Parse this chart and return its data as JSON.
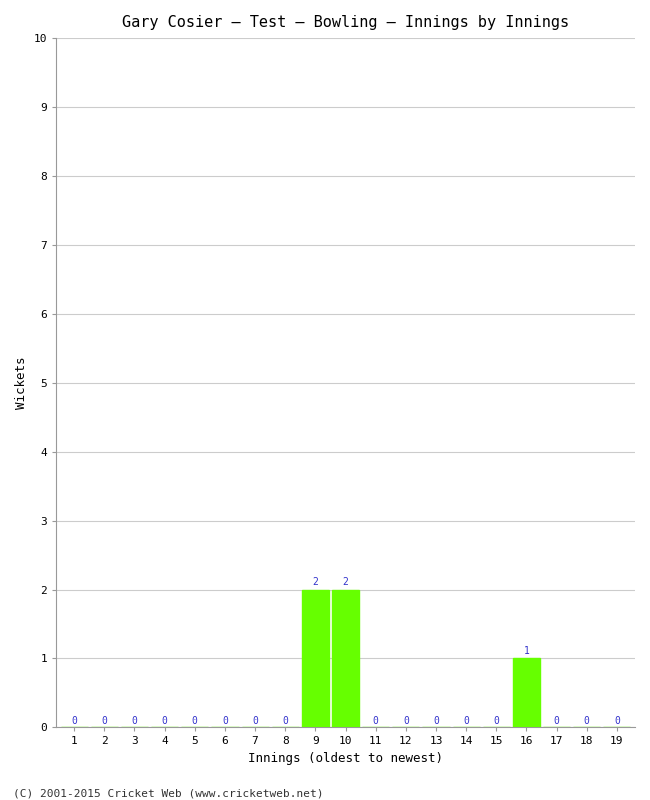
{
  "title": "Gary Cosier – Test – Bowling – Innings by Innings",
  "xlabel": "Innings (oldest to newest)",
  "ylabel": "Wickets",
  "innings": [
    1,
    2,
    3,
    4,
    5,
    6,
    7,
    8,
    9,
    10,
    11,
    12,
    13,
    14,
    15,
    16,
    17,
    18,
    19
  ],
  "wickets": [
    0,
    0,
    0,
    0,
    0,
    0,
    0,
    0,
    2,
    2,
    0,
    0,
    0,
    0,
    0,
    1,
    0,
    0,
    0
  ],
  "bar_color": "#66ff00",
  "label_color": "#3333cc",
  "ylim": [
    0,
    10
  ],
  "yticks": [
    0,
    1,
    2,
    3,
    4,
    5,
    6,
    7,
    8,
    9,
    10
  ],
  "background_color": "#ffffff",
  "grid_color": "#cccccc",
  "footer": "(C) 2001-2015 Cricket Web (www.cricketweb.net)",
  "title_fontsize": 11,
  "label_fontsize": 9,
  "tick_fontsize": 8,
  "footer_fontsize": 8,
  "bar_width": 0.9
}
